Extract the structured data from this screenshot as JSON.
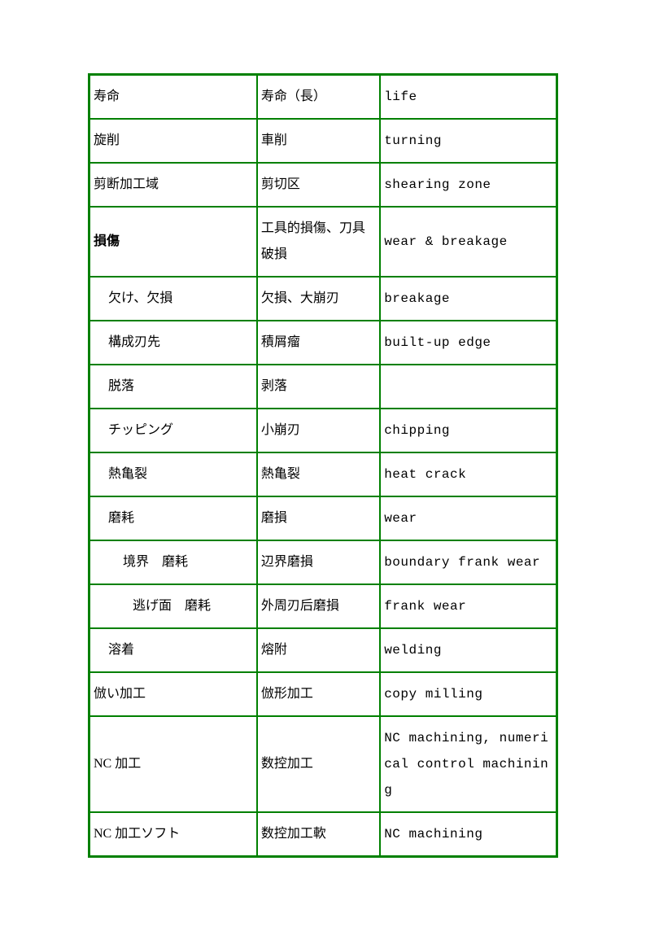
{
  "table": {
    "border_color": "#008000",
    "text_color": "#000000",
    "background_color": "#ffffff",
    "font_size": 16,
    "columns": [
      "japanese",
      "chinese",
      "english"
    ],
    "column_widths_pct": [
      36,
      26,
      38
    ],
    "rows": [
      {
        "jp": "寿命",
        "cn": "寿命（長）",
        "en": "life",
        "indent": 0,
        "bold": false
      },
      {
        "jp": "旋削",
        "cn": "車削",
        "en": "turning",
        "indent": 0,
        "bold": false
      },
      {
        "jp": "剪断加工域",
        "cn": "剪切区",
        "en": "shearing zone",
        "indent": 0,
        "bold": false
      },
      {
        "jp": "損傷",
        "cn": "工具的損傷、刀具破損",
        "en": "wear & breakage",
        "indent": 0,
        "bold": true
      },
      {
        "jp": "欠け、欠損",
        "cn": "欠損、大崩刃",
        "en": "breakage",
        "indent": 1,
        "bold": false
      },
      {
        "jp": "構成刃先",
        "cn": "積屑瘤",
        "en": "built-up edge",
        "indent": 1,
        "bold": false
      },
      {
        "jp": "脱落",
        "cn": "剥落",
        "en": "",
        "indent": 1,
        "bold": false
      },
      {
        "jp": "チッピング",
        "cn": "小崩刃",
        "en": "chipping",
        "indent": 1,
        "bold": false
      },
      {
        "jp": "熱亀裂",
        "cn": "熱亀裂",
        "en": "heat crack",
        "indent": 1,
        "bold": false
      },
      {
        "jp": "磨耗",
        "cn": "磨損",
        "en": "wear",
        "indent": 1,
        "bold": false
      },
      {
        "jp": "境界　磨耗",
        "cn": "辺界磨損",
        "en": "boundary frank wear",
        "indent": 2,
        "bold": false
      },
      {
        "jp": "逃げ面　磨耗",
        "cn": "外周刃后磨損",
        "en": "frank wear",
        "indent": 3,
        "bold": false
      },
      {
        "jp": "溶着",
        "cn": "熔附",
        "en": "welding",
        "indent": 1,
        "bold": false
      },
      {
        "jp": "倣い加工",
        "cn": "倣形加工",
        "en": "copy milling",
        "indent": 0,
        "bold": false
      },
      {
        "jp": "NC 加工",
        "cn": "数控加工",
        "en": "NC machining, numerical control machining",
        "indent": 0,
        "bold": false
      },
      {
        "jp": "NC 加工ソフト",
        "cn": "数控加工軟",
        "en": "NC machining",
        "indent": 0,
        "bold": false
      }
    ]
  }
}
